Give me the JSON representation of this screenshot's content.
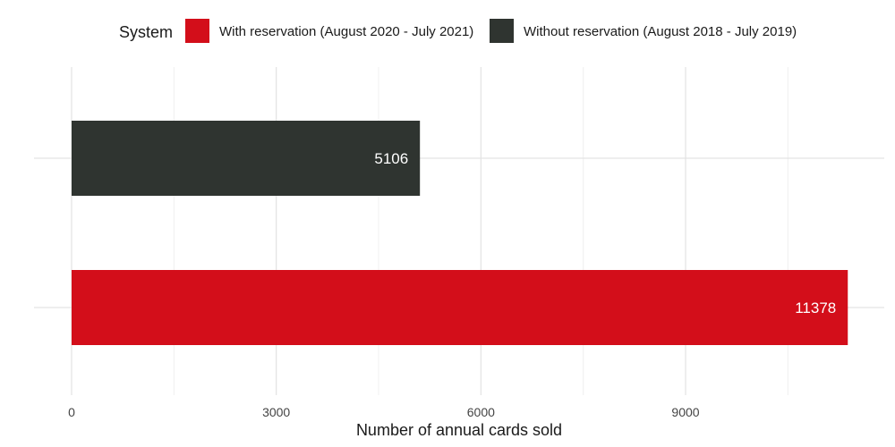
{
  "chart_data": {
    "type": "bar",
    "orientation": "horizontal",
    "legend": {
      "title": "System",
      "position": "top"
    },
    "series": [
      {
        "name": "Without reservation (August 2018 - July 2019)",
        "value": 5106,
        "label": "5106",
        "color": "#2f3430"
      },
      {
        "name": "With reservation (August 2020 - July 2021)",
        "value": 11378,
        "label": "11378",
        "color": "#d30e1a"
      }
    ],
    "legend_order": [
      1,
      0
    ],
    "xlabel": "Number of annual cards sold",
    "ylabel": "",
    "xlim": [
      0,
      11900
    ],
    "xticks": [
      0,
      3000,
      6000,
      9000
    ],
    "xtick_labels": [
      "0",
      "3000",
      "6000",
      "9000"
    ],
    "grid": true
  }
}
